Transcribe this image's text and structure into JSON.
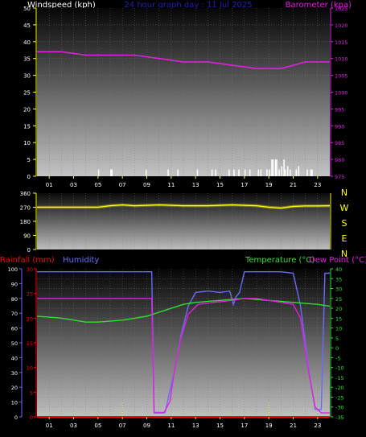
{
  "header": {
    "left_label": "Windspeed (kph)",
    "center_label": "24 hour graph day : 11 Jul 2025",
    "right_label": "Barometer (kpa)"
  },
  "bottom_header": {
    "rainfall_label": "Rainfall (mm)",
    "humidity_label": "Humidity",
    "temperature_label": "Temperature (°C)",
    "dewpoint_label": "Dew Point (°C)"
  },
  "colors": {
    "windspeed": "#ffffff",
    "barometer": "#e020e0",
    "wind_direction": "#ffff00",
    "rainfall": "#ff0000",
    "humidity": "#6a6aff",
    "temperature": "#30e030",
    "dewpoint": "#e020e0",
    "axis_yellow": "#ffff00",
    "axis_blue": "#6a6aff",
    "axis_red": "#ff0000",
    "axis_green": "#30e030"
  },
  "chart_data": [
    {
      "type": "line",
      "title": "24 hour graph day : 11 Jul 2025",
      "x_ticks": [
        "01",
        "03",
        "05",
        "07",
        "09",
        "11",
        "13",
        "15",
        "17",
        "19",
        "21",
        "23"
      ],
      "x_range_hours": [
        0,
        24
      ],
      "grid": true,
      "left_axis": {
        "label": "Windspeed (kph)",
        "ylim": [
          0,
          50
        ],
        "ticks": [
          0,
          5,
          10,
          15,
          20,
          25,
          30,
          35,
          40,
          45,
          50
        ]
      },
      "right_axis": {
        "label": "Barometer (kpa)",
        "ylim": [
          975,
          1025
        ],
        "ticks": [
          975,
          980,
          985,
          990,
          995,
          1000,
          1005,
          1010,
          1015,
          1020,
          1025
        ]
      },
      "series": [
        {
          "name": "Barometer (kpa)",
          "axis": "right",
          "x": [
            0,
            2,
            4,
            6,
            8,
            10,
            12,
            14,
            16,
            18,
            19,
            20,
            21,
            22,
            23,
            24
          ],
          "y": [
            1012,
            1012,
            1011,
            1011,
            1011,
            1010,
            1009,
            1009,
            1008,
            1007,
            1007,
            1007,
            1008,
            1009,
            1009,
            1009
          ]
        },
        {
          "name": "Windspeed (kph)",
          "axis": "left",
          "style": "bars",
          "x": [
            5.0,
            6.0,
            6.1,
            8.9,
            10.7,
            11.5,
            13.1,
            14.3,
            14.6,
            15.7,
            16.1,
            16.5,
            17.0,
            17.4,
            18.1,
            18.3,
            18.8,
            19.0,
            19.2,
            19.3,
            19.5,
            19.6,
            19.8,
            20.0,
            20.2,
            20.3,
            20.5,
            20.7,
            21.2,
            21.4,
            22.1,
            22.4,
            22.5
          ],
          "y": [
            2,
            2,
            2,
            2,
            2,
            2,
            2,
            2,
            2,
            2,
            2,
            2,
            2,
            2,
            2,
            2,
            2,
            2,
            5,
            5,
            5,
            5,
            2,
            3,
            5,
            2,
            3,
            2,
            2,
            3,
            2,
            2,
            2
          ]
        }
      ]
    },
    {
      "type": "line",
      "title": "",
      "x_range_hours": [
        0,
        24
      ],
      "grid": true,
      "left_axis": {
        "label": "",
        "ylim": [
          0,
          360
        ],
        "ticks": [
          0,
          90,
          180,
          270,
          360
        ]
      },
      "right_axis_labels": [
        "N",
        "W",
        "S",
        "E",
        "N"
      ],
      "series": [
        {
          "name": "",
          "axis": "left",
          "x": [
            0,
            2,
            4,
            5,
            6,
            7,
            8,
            10,
            12,
            14,
            16,
            18,
            19,
            20,
            21,
            22,
            23,
            24
          ],
          "y": [
            270,
            270,
            270,
            270,
            280,
            285,
            280,
            285,
            280,
            280,
            285,
            280,
            270,
            265,
            275,
            278,
            278,
            280
          ]
        }
      ]
    },
    {
      "type": "line",
      "title": "",
      "x_ticks": [
        "01",
        "03",
        "05",
        "07",
        "09",
        "11",
        "13",
        "15",
        "17",
        "19",
        "21",
        "23"
      ],
      "x_range_hours": [
        0,
        24
      ],
      "grid": true,
      "axes": {
        "humidity": {
          "label": "Humidity",
          "ylim": [
            0,
            100
          ],
          "ticks": [
            0,
            10,
            20,
            30,
            40,
            50,
            60,
            70,
            80,
            90,
            100
          ]
        },
        "rainfall": {
          "label": "Rainfall (mm)",
          "ylim": [
            0,
            30
          ],
          "ticks": [
            0,
            5,
            10,
            15,
            20,
            25,
            30
          ]
        },
        "temperature": {
          "label": "Temperature (°C)",
          "ylim": [
            -35,
            40
          ],
          "ticks": [
            -35,
            -30,
            -25,
            -20,
            -15,
            -10,
            -5,
            0,
            5,
            10,
            15,
            20,
            25,
            30,
            35,
            40
          ]
        }
      },
      "series": [
        {
          "name": "Humidity",
          "axis": "humidity",
          "x": [
            0,
            2,
            4,
            6,
            8,
            9.4,
            9.6,
            10.2,
            10.5,
            10.9,
            11.3,
            11.8,
            12.4,
            13.0,
            14.0,
            15.0,
            15.8,
            16.1,
            16.3,
            16.6,
            17.0,
            18.0,
            20.0,
            21.0,
            21.6,
            22.3,
            22.8,
            23.3,
            23.6,
            24
          ],
          "y": [
            98,
            98,
            98,
            98,
            98,
            98,
            3,
            3,
            3,
            18,
            32,
            55,
            75,
            84,
            85,
            84,
            85,
            76,
            81,
            84,
            98,
            98,
            98,
            97,
            75,
            30,
            5,
            5,
            97,
            97
          ]
        },
        {
          "name": "Temperature (°C)",
          "axis": "temperature",
          "x": [
            0,
            2,
            4,
            5,
            7,
            9,
            10,
            11,
            12,
            13,
            15,
            17,
            19,
            21,
            23,
            24
          ],
          "y": [
            16,
            15,
            13,
            13,
            14,
            16,
            18,
            20,
            22,
            23,
            24,
            25,
            24,
            23,
            22,
            21
          ]
        },
        {
          "name": "Dew Point (°C)",
          "axis": "temperature",
          "x": [
            0,
            9.4,
            9.6,
            10.4,
            10.9,
            11.3,
            11.8,
            12.4,
            13.2,
            14.5,
            16,
            17,
            18,
            19,
            20,
            21,
            21.6,
            22.2,
            22.8,
            23.3,
            23.6,
            24
          ],
          "y": [
            25,
            25,
            -33,
            -33,
            -27,
            -10,
            5,
            17,
            22,
            23,
            24,
            25,
            25,
            24,
            23,
            22,
            15,
            -10,
            -30,
            -33,
            -33,
            -33
          ]
        },
        {
          "name": "Rainfall (mm)",
          "axis": "rainfall",
          "x": [
            0,
            24
          ],
          "y": [
            0,
            0
          ]
        }
      ]
    }
  ]
}
